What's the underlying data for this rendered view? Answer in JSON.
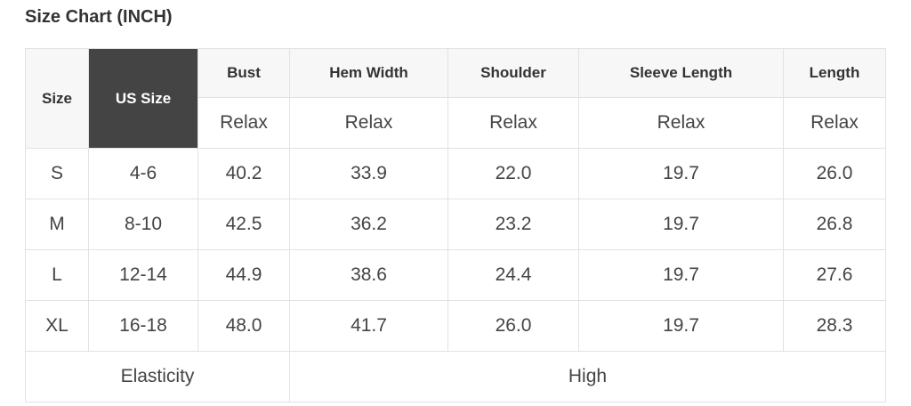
{
  "title": "Size Chart (INCH)",
  "headers": {
    "size": "Size",
    "us_size": "US Size",
    "measures": [
      "Bust",
      "Hem Width",
      "Shoulder",
      "Sleeve Length",
      "Length"
    ],
    "fit": [
      "Relax",
      "Relax",
      "Relax",
      "Relax",
      "Relax"
    ]
  },
  "rows": [
    [
      "S",
      "4-6",
      "40.2",
      "33.9",
      "22.0",
      "19.7",
      "26.0"
    ],
    [
      "M",
      "8-10",
      "42.5",
      "36.2",
      "23.2",
      "19.7",
      "26.8"
    ],
    [
      "L",
      "12-14",
      "44.9",
      "38.6",
      "24.4",
      "19.7",
      "27.6"
    ],
    [
      "XL",
      "16-18",
      "48.0",
      "41.7",
      "26.0",
      "19.7",
      "28.3"
    ]
  ],
  "footer": {
    "label": "Elasticity",
    "value": "High"
  },
  "colors": {
    "us_size_bg": "#444444",
    "header_bg": "#f7f7f7",
    "border": "#e2e2e2"
  }
}
